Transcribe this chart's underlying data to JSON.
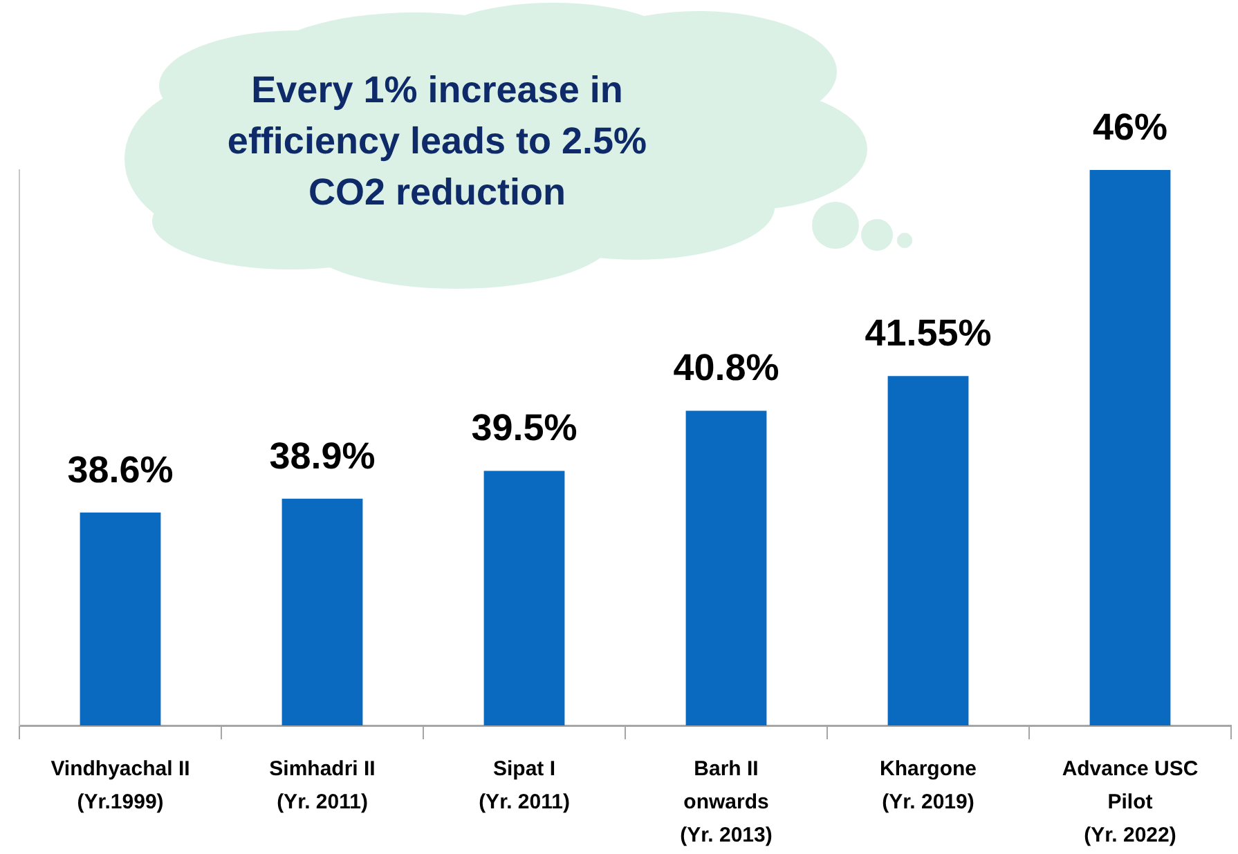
{
  "chart_data": {
    "type": "bar",
    "categories": [
      "Vindhyachal II\n(Yr.1999)",
      "Simhadri II\n(Yr. 2011)",
      "Sipat I\n(Yr. 2011)",
      "Barh II\nonwards\n(Yr. 2013)",
      "Khargone\n(Yr. 2019)",
      "Advance USC\nPilot\n(Yr. 2022)"
    ],
    "values": [
      38.6,
      38.9,
      39.5,
      40.8,
      41.55,
      46
    ],
    "color": "#0a6ac0",
    "value_labels": [
      "38.6%",
      "38.9%",
      "39.5%",
      "40.8%",
      "41.55%",
      "46%"
    ],
    "ylim": [
      34,
      46
    ],
    "tick_labels": "x",
    "legend": false,
    "annotations": [
      "Every 1% increase in efficiency leads to 2.5% CO2 reduction"
    ]
  }
}
